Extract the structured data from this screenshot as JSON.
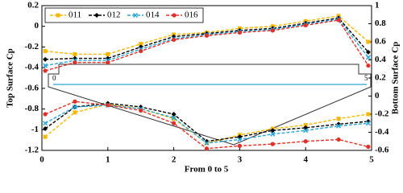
{
  "chart_data": {
    "type": "line",
    "x_label": "From 0 to 5",
    "y_label": "Top Surface Cp",
    "y2_label": "Bottom Surface Cp",
    "x": [
      0.05,
      0.5,
      1,
      1.5,
      2,
      2.5,
      3,
      3.5,
      4,
      4.5,
      4.95
    ],
    "xlim": [
      0,
      5
    ],
    "xticks": [
      0,
      1,
      2,
      3,
      4,
      5
    ],
    "ylim": [
      -1.2,
      0.2
    ],
    "yticks": [
      0.2,
      0,
      -0.2,
      -0.4,
      -0.6,
      -0.8,
      -1,
      -1.2
    ],
    "y2lim": [
      -0.6,
      1
    ],
    "y2ticks": [
      1,
      0.8,
      0.6,
      0.4,
      0.2,
      0,
      -0.2,
      -0.4,
      -0.6
    ],
    "inset_labels": [
      "0",
      "5"
    ],
    "legend": "upper left",
    "series": [
      {
        "name": "011",
        "color": "#f5b800",
        "marker": "square",
        "values": [
          -0.24,
          -0.27,
          -0.27,
          -0.17,
          -0.08,
          -0.06,
          -0.02,
          0.0,
          0.05,
          0.1,
          -0.15
        ],
        "y2_values": [
          -0.45,
          -0.18,
          -0.09,
          -0.14,
          -0.25,
          -0.52,
          -0.43,
          -0.36,
          -0.32,
          -0.25,
          -0.2
        ]
      },
      {
        "name": "012",
        "color": "#000000",
        "marker": "diamond",
        "values": [
          -0.32,
          -0.31,
          -0.31,
          -0.2,
          -0.1,
          -0.07,
          -0.04,
          -0.02,
          0.03,
          0.08,
          -0.25
        ],
        "y2_values": [
          -0.36,
          -0.12,
          -0.08,
          -0.12,
          -0.2,
          -0.5,
          -0.45,
          -0.38,
          -0.35,
          -0.31,
          -0.28
        ]
      },
      {
        "name": "014",
        "color": "#2aa5d8",
        "marker": "cross",
        "values": [
          -0.38,
          -0.33,
          -0.33,
          -0.22,
          -0.12,
          -0.08,
          -0.05,
          -0.03,
          0.02,
          0.07,
          -0.3
        ],
        "y2_values": [
          -0.3,
          -0.12,
          -0.1,
          -0.14,
          -0.24,
          -0.52,
          -0.48,
          -0.42,
          -0.38,
          -0.33,
          -0.3
        ]
      },
      {
        "name": "016",
        "color": "#e0302a",
        "marker": "circle",
        "values": [
          -0.43,
          -0.35,
          -0.35,
          -0.24,
          -0.13,
          -0.09,
          -0.06,
          -0.04,
          0.01,
          0.06,
          -0.38
        ],
        "y2_values": [
          -0.2,
          -0.06,
          -0.1,
          -0.16,
          -0.3,
          -0.58,
          -0.55,
          -0.53,
          -0.5,
          -0.48,
          -0.56
        ]
      }
    ]
  }
}
